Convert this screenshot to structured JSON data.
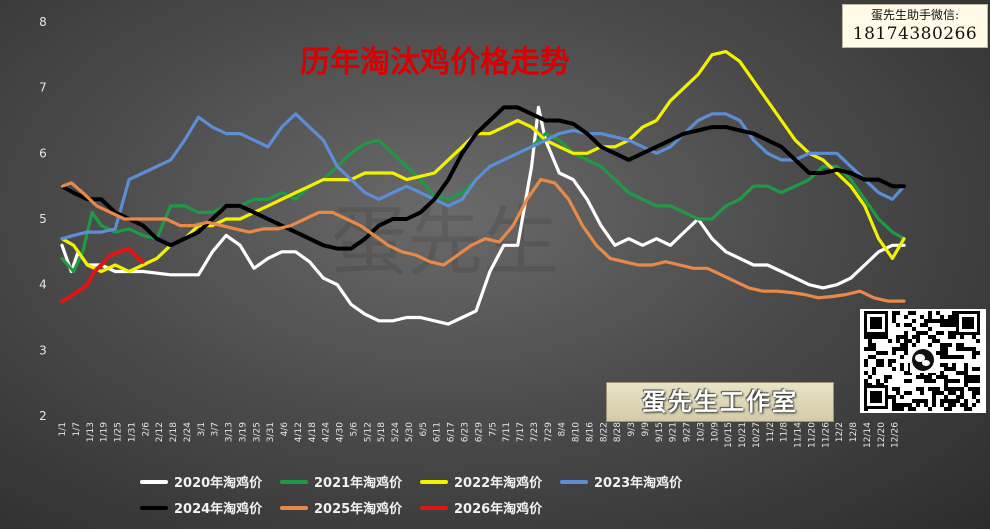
{
  "title": "历年淘汰鸡价格走势",
  "watermark": "蛋先生",
  "contact": {
    "line1": "蛋先生助手微信:",
    "line2": "18174380266"
  },
  "studio_label": "蛋先生工作室",
  "qr_icon": "wechat-qr-code",
  "chart_data": {
    "type": "line",
    "title": "历年淘汰鸡价格走势",
    "xlabel": "",
    "ylabel": "",
    "ylim": [
      2,
      8
    ],
    "yticks": [
      2,
      3,
      4,
      5,
      6,
      7,
      8
    ],
    "x_range": [
      1,
      365
    ],
    "grid": false,
    "legend_position": "bottom",
    "x_tick_labels": [
      "1/1",
      "1/7",
      "1/13",
      "1/19",
      "1/25",
      "1/31",
      "2/6",
      "2/12",
      "2/18",
      "2/24",
      "3/1",
      "3/7",
      "3/13",
      "3/19",
      "3/25",
      "3/31",
      "4/6",
      "4/12",
      "4/18",
      "4/24",
      "4/30",
      "5/6",
      "5/12",
      "5/18",
      "5/24",
      "5/30",
      "6/5",
      "6/11",
      "6/17",
      "6/23",
      "6/29",
      "7/5",
      "7/11",
      "7/17",
      "7/23",
      "7/29",
      "8/4",
      "8/10",
      "8/16",
      "8/22",
      "8/28",
      "9/3",
      "9/9",
      "9/15",
      "9/21",
      "9/27",
      "10/3",
      "10/9",
      "10/15",
      "10/21",
      "10/27",
      "11/2",
      "11/8",
      "11/14",
      "11/20",
      "11/26",
      "12/2",
      "12/8",
      "12/14",
      "12/20",
      "12/26"
    ],
    "series": [
      {
        "name": "2020年淘鸡价",
        "color": "#ffffff",
        "x": [
          1,
          5,
          8,
          12,
          18,
          24,
          30,
          36,
          48,
          60,
          66,
          72,
          78,
          84,
          90,
          96,
          102,
          108,
          114,
          120,
          126,
          132,
          138,
          144,
          150,
          156,
          162,
          168,
          174,
          180,
          186,
          192,
          198,
          204,
          207,
          210,
          216,
          222,
          228,
          234,
          240,
          246,
          252,
          258,
          264,
          270,
          276,
          282,
          288,
          294,
          300,
          306,
          312,
          318,
          324,
          330,
          336,
          342,
          348,
          354,
          360,
          365
        ],
        "y": [
          4.6,
          4.2,
          4.5,
          4.3,
          4.3,
          4.2,
          4.2,
          4.2,
          4.15,
          4.15,
          4.5,
          4.75,
          4.6,
          4.25,
          4.4,
          4.5,
          4.5,
          4.35,
          4.1,
          4.0,
          3.7,
          3.55,
          3.45,
          3.45,
          3.5,
          3.5,
          3.45,
          3.4,
          3.5,
          3.6,
          4.2,
          4.6,
          4.6,
          5.8,
          6.7,
          6.2,
          5.7,
          5.6,
          5.3,
          4.9,
          4.6,
          4.7,
          4.6,
          4.7,
          4.6,
          4.8,
          5.0,
          4.7,
          4.5,
          4.4,
          4.3,
          4.3,
          4.2,
          4.1,
          4.0,
          3.95,
          4.0,
          4.1,
          4.3,
          4.5,
          4.6,
          4.6
        ]
      },
      {
        "name": "2021年淘鸡价",
        "color": "#1f9a44",
        "x": [
          1,
          6,
          10,
          14,
          18,
          24,
          30,
          36,
          42,
          48,
          54,
          60,
          66,
          72,
          78,
          84,
          90,
          96,
          102,
          108,
          114,
          120,
          126,
          132,
          138,
          144,
          150,
          156,
          162,
          168,
          174,
          180,
          186,
          192,
          198,
          204,
          210,
          216,
          222,
          228,
          234,
          240,
          246,
          252,
          258,
          264,
          270,
          276,
          282,
          288,
          294,
          300,
          306,
          312,
          318,
          324,
          330,
          336,
          342,
          348,
          354,
          360,
          365
        ],
        "y": [
          4.4,
          4.2,
          4.5,
          5.1,
          4.9,
          4.8,
          4.85,
          4.75,
          4.7,
          5.2,
          5.2,
          5.1,
          5.1,
          5.2,
          5.2,
          5.3,
          5.3,
          5.4,
          5.3,
          5.5,
          5.6,
          5.8,
          6.0,
          6.15,
          6.2,
          6.0,
          5.8,
          5.6,
          5.35,
          5.3,
          5.4,
          5.6,
          5.8,
          5.9,
          6.0,
          6.1,
          6.3,
          6.2,
          6.0,
          5.9,
          5.8,
          5.6,
          5.4,
          5.3,
          5.2,
          5.2,
          5.1,
          5.0,
          5.0,
          5.2,
          5.3,
          5.5,
          5.5,
          5.4,
          5.5,
          5.6,
          5.8,
          5.8,
          5.6,
          5.3,
          5.0,
          4.8,
          4.7
        ]
      },
      {
        "name": "2022年淘鸡价",
        "color": "#f2f200",
        "x": [
          1,
          6,
          12,
          18,
          24,
          30,
          36,
          42,
          48,
          54,
          60,
          66,
          72,
          78,
          84,
          90,
          96,
          102,
          108,
          114,
          120,
          126,
          132,
          138,
          144,
          150,
          156,
          162,
          168,
          174,
          180,
          186,
          192,
          198,
          204,
          210,
          216,
          222,
          228,
          234,
          240,
          246,
          252,
          258,
          264,
          270,
          276,
          282,
          288,
          294,
          300,
          306,
          312,
          318,
          324,
          330,
          336,
          342,
          348,
          354,
          360,
          365
        ],
        "y": [
          4.7,
          4.6,
          4.3,
          4.2,
          4.3,
          4.2,
          4.3,
          4.4,
          4.6,
          4.7,
          4.9,
          4.9,
          5.0,
          5.0,
          5.1,
          5.2,
          5.3,
          5.4,
          5.5,
          5.6,
          5.6,
          5.6,
          5.7,
          5.7,
          5.7,
          5.6,
          5.65,
          5.7,
          5.9,
          6.1,
          6.3,
          6.3,
          6.4,
          6.5,
          6.4,
          6.2,
          6.1,
          6.0,
          6.0,
          6.1,
          6.1,
          6.2,
          6.4,
          6.5,
          6.8,
          7.0,
          7.2,
          7.5,
          7.55,
          7.4,
          7.1,
          6.8,
          6.5,
          6.2,
          6.0,
          5.9,
          5.7,
          5.5,
          5.2,
          4.7,
          4.4,
          4.7
        ]
      },
      {
        "name": "2023年淘鸡价",
        "color": "#5b8ed6",
        "x": [
          1,
          6,
          12,
          18,
          24,
          30,
          36,
          42,
          48,
          54,
          60,
          66,
          72,
          78,
          84,
          90,
          96,
          102,
          108,
          114,
          120,
          126,
          132,
          138,
          144,
          150,
          156,
          162,
          168,
          174,
          180,
          186,
          192,
          198,
          204,
          210,
          216,
          222,
          228,
          234,
          240,
          246,
          252,
          258,
          264,
          270,
          276,
          282,
          288,
          294,
          300,
          306,
          312,
          318,
          324,
          330,
          336,
          342,
          348,
          354,
          360,
          365
        ],
        "y": [
          4.7,
          4.75,
          4.8,
          4.8,
          4.85,
          5.6,
          5.7,
          5.8,
          5.9,
          6.2,
          6.55,
          6.4,
          6.3,
          6.3,
          6.2,
          6.1,
          6.4,
          6.6,
          6.4,
          6.2,
          5.8,
          5.6,
          5.4,
          5.3,
          5.4,
          5.5,
          5.4,
          5.3,
          5.2,
          5.3,
          5.6,
          5.8,
          5.9,
          6.0,
          6.1,
          6.2,
          6.3,
          6.35,
          6.3,
          6.3,
          6.25,
          6.2,
          6.1,
          6.0,
          6.1,
          6.3,
          6.5,
          6.6,
          6.6,
          6.5,
          6.2,
          6.0,
          5.9,
          5.9,
          6.0,
          6.0,
          6.0,
          5.8,
          5.6,
          5.4,
          5.3,
          5.5
        ]
      },
      {
        "name": "2024年淘鸡价",
        "color": "#000000",
        "x": [
          1,
          6,
          12,
          18,
          24,
          30,
          36,
          42,
          48,
          54,
          60,
          66,
          72,
          78,
          84,
          90,
          96,
          102,
          108,
          114,
          120,
          126,
          132,
          138,
          144,
          150,
          156,
          162,
          168,
          174,
          180,
          186,
          192,
          198,
          204,
          210,
          216,
          222,
          228,
          234,
          240,
          246,
          252,
          258,
          264,
          270,
          276,
          282,
          288,
          294,
          300,
          306,
          312,
          318,
          324,
          330,
          336,
          342,
          348,
          354,
          360,
          365
        ],
        "y": [
          5.5,
          5.4,
          5.3,
          5.3,
          5.1,
          5.0,
          4.9,
          4.7,
          4.6,
          4.7,
          4.8,
          5.0,
          5.2,
          5.2,
          5.1,
          5.0,
          4.9,
          4.8,
          4.7,
          4.6,
          4.55,
          4.55,
          4.7,
          4.9,
          5.0,
          5.0,
          5.1,
          5.3,
          5.6,
          6.0,
          6.3,
          6.5,
          6.7,
          6.7,
          6.6,
          6.5,
          6.5,
          6.45,
          6.3,
          6.1,
          6.0,
          5.9,
          6.0,
          6.1,
          6.2,
          6.3,
          6.35,
          6.4,
          6.4,
          6.35,
          6.3,
          6.2,
          6.1,
          5.9,
          5.7,
          5.7,
          5.75,
          5.7,
          5.6,
          5.6,
          5.5,
          5.5
        ]
      },
      {
        "name": "2025年淘鸡价",
        "color": "#e8894a",
        "x": [
          1,
          5,
          10,
          16,
          22,
          28,
          34,
          40,
          46,
          52,
          58,
          64,
          70,
          76,
          82,
          88,
          94,
          100,
          106,
          112,
          118,
          124,
          130,
          136,
          142,
          148,
          154,
          160,
          166,
          172,
          178,
          184,
          190,
          196,
          202,
          208,
          214,
          220,
          226,
          232,
          238,
          244,
          250,
          256,
          262,
          268,
          274,
          280,
          286,
          292,
          298,
          304,
          310,
          316,
          322,
          328,
          334,
          340,
          346,
          352,
          358,
          365
        ],
        "y": [
          5.5,
          5.55,
          5.4,
          5.2,
          5.1,
          5.0,
          5.0,
          5.0,
          5.0,
          4.9,
          4.9,
          4.95,
          4.9,
          4.85,
          4.8,
          4.85,
          4.85,
          4.9,
          5.0,
          5.1,
          5.1,
          5.0,
          4.9,
          4.75,
          4.6,
          4.5,
          4.45,
          4.35,
          4.3,
          4.45,
          4.6,
          4.7,
          4.65,
          4.9,
          5.3,
          5.6,
          5.55,
          5.3,
          4.9,
          4.6,
          4.4,
          4.35,
          4.3,
          4.3,
          4.35,
          4.3,
          4.25,
          4.25,
          4.15,
          4.05,
          3.95,
          3.9,
          3.9,
          3.88,
          3.85,
          3.8,
          3.82,
          3.85,
          3.9,
          3.8,
          3.75,
          3.75
        ]
      },
      {
        "name": "2026年淘鸡价",
        "color": "#e01515",
        "x": [
          1,
          4,
          8,
          12,
          15,
          18,
          22,
          26,
          30,
          34,
          36
        ],
        "y": [
          3.75,
          3.8,
          3.9,
          4.0,
          4.2,
          4.3,
          4.45,
          4.5,
          4.55,
          4.4,
          4.35
        ]
      }
    ]
  }
}
